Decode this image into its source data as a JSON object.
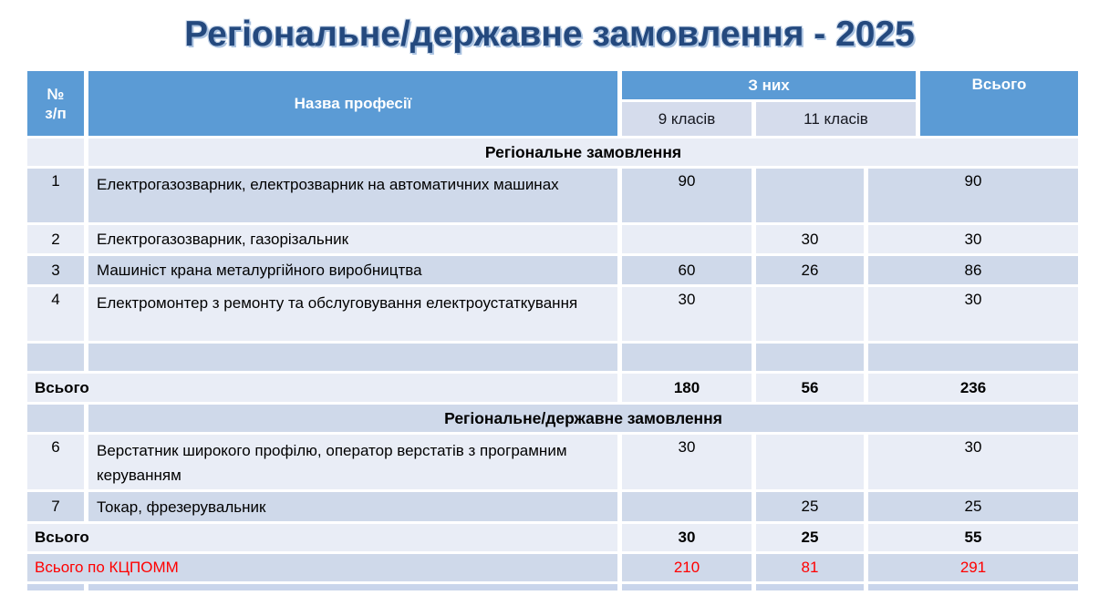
{
  "title": "Регіональне/державне замовлення - 2025",
  "colors": {
    "title_text": "#24497E",
    "header_bg": "#5B9BD5",
    "header_text": "#FFFFFF",
    "subheader_bg": "#D5DCEC",
    "band_dark": "#CFD9EA",
    "band_light": "#E9EDF6",
    "bottom_strip": "#C9D5EB",
    "grand_total_text": "#FF0000"
  },
  "table": {
    "header": {
      "num_top": "№",
      "num_bottom": "з/п",
      "profession": "Назва професії",
      "of_them": "З них",
      "grade9": "9 класів",
      "grade11": "11 класів",
      "total": "Всього"
    },
    "sections": [
      {
        "title": "Регіональне замовлення",
        "rows": [
          {
            "num": "1",
            "name": "Електрогазозварник, електрозварник на автоматичних машинах",
            "g9": "90",
            "g11": "",
            "total": "90"
          },
          {
            "num": "2",
            "name": "Електрогазозварник, газорізальник",
            "g9": "",
            "g11": "30",
            "total": "30"
          },
          {
            "num": "3",
            "name": "Машиніст крана металургійного виробництва",
            "g9": "60",
            "g11": "26",
            "total": "86"
          },
          {
            "num": "4",
            "name": "Електромонтер з ремонту та обслуговування електроустаткування",
            "g9": "30",
            "g11": "",
            "total": "30"
          },
          {
            "num": "",
            "name": "",
            "g9": "",
            "g11": "",
            "total": ""
          }
        ],
        "subtotal": {
          "label": "Всього",
          "g9": "180",
          "g11": "56",
          "total": "236"
        }
      },
      {
        "title": "Регіональне/державне замовлення",
        "rows": [
          {
            "num": "6",
            "name": "Верстатник широкого профілю,  оператор верстатів з програмним керуванням",
            "g9": "30",
            "g11": "",
            "total": "30"
          },
          {
            "num": "7",
            "name": "Токар, фрезерувальник",
            "g9": "",
            "g11": "25",
            "total": "25"
          }
        ],
        "subtotal": {
          "label": "Всього",
          "g9": "30",
          "g11": "25",
          "total": "55"
        }
      }
    ],
    "grand_total": {
      "label": "Всього по КЦПОММ",
      "g9": "210",
      "g11": "81",
      "total": "291"
    }
  }
}
